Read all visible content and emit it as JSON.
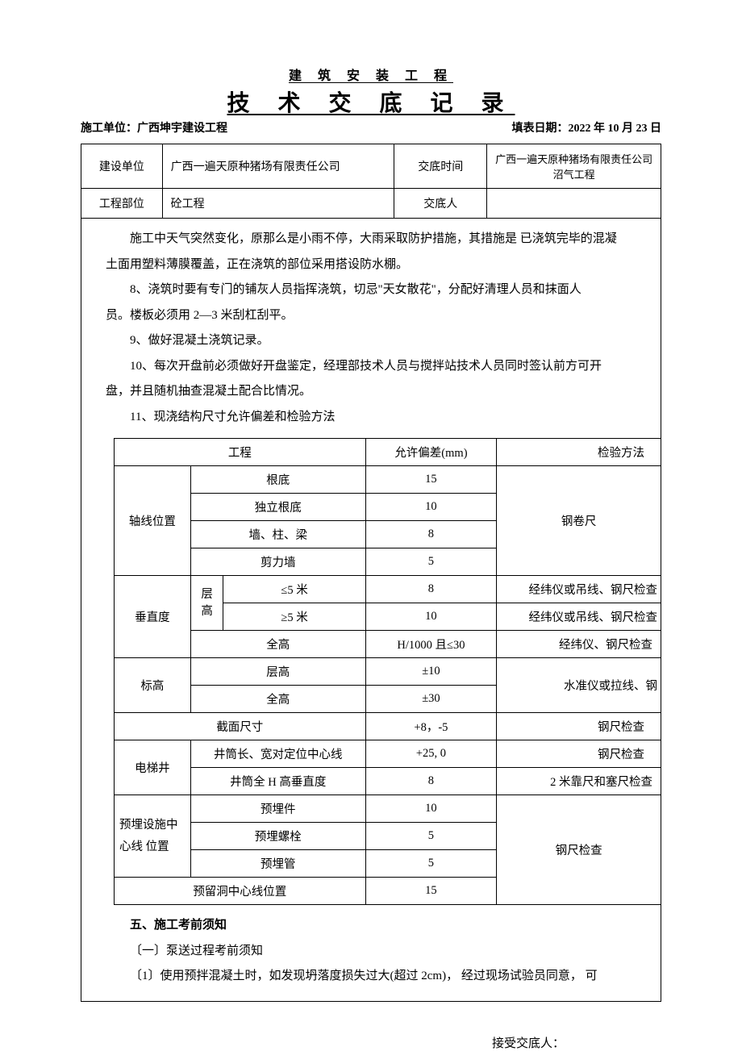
{
  "header": {
    "small_title": "建 筑 安 装 工 程",
    "big_title": "技 术 交 底 记 录",
    "unit_label": "施工单位：",
    "unit_value": "广西坤宇建设工程",
    "date_label": "填表日期：",
    "date_value": "2022 年 10 月 23 日"
  },
  "info": {
    "build_unit_label": "建设单位",
    "build_unit_value": "广西一遍天原种猪场有限责任公司",
    "time_label": "交底时间",
    "time_value": "广西一遍天原种猪场有限责任公司沼气工程",
    "part_label": "工程部位",
    "part_value": "砼工程",
    "person_label": "交底人",
    "person_value": ""
  },
  "body": {
    "p0a": "施工中天气突然变化，原那么是小雨不停，大雨采取防护措施，其措施是 已浇筑完毕的混凝",
    "p0b": "土面用塑料薄膜覆盖，正在浇筑的部位采用搭设防水棚。",
    "p8a": "8、浇筑时要有专门的铺灰人员指挥浇筑，切忌\"天女散花\"，分配好清理人员和抹面人",
    "p8b": "员。楼板必须用 2—3 米刮杠刮平。",
    "p9": "9、做好混凝土浇筑记录。",
    "p10a": "10、每次开盘前必须做好开盘鉴定，经理部技术人员与搅拌站技术人员同时签认前方可开",
    "p10b": "盘，并且随机抽查混凝土配合比情况。",
    "p11": "11、现浇结构尺寸允许偏差和检验方法"
  },
  "tolerance": {
    "head": {
      "c1": "工程",
      "c2": "允许偏差(mm)",
      "c3": "检验方法"
    },
    "axis": {
      "label": "轴线位置",
      "r1": {
        "name": "根底",
        "dev": "15"
      },
      "r2": {
        "name": "独立根底",
        "dev": "10"
      },
      "r3": {
        "name": "墙、柱、梁",
        "dev": "8"
      },
      "r4": {
        "name": "剪力墙",
        "dev": "5"
      },
      "method": "钢卷尺"
    },
    "vert": {
      "label": "垂直度",
      "floor_label": "层高",
      "r1": {
        "name": "≤5 米",
        "dev": "8",
        "method": "经纬仪或吊线、钢尺检查"
      },
      "r2": {
        "name": "≥5 米",
        "dev": "10",
        "method": "经纬仪或吊线、钢尺检查"
      },
      "r3": {
        "name": "全高",
        "dev": "H/1000 且≤30",
        "method": "经纬仪、钢尺检查"
      }
    },
    "elev": {
      "label": "标高",
      "r1": {
        "name": "层高",
        "dev": "±10"
      },
      "r2": {
        "name": "全高",
        "dev": "±30"
      },
      "method": "水准仪或拉线、钢"
    },
    "section": {
      "name": "截面尺寸",
      "dev": "+8，-5",
      "method": "钢尺检查"
    },
    "elev_shaft": {
      "label": "电梯井",
      "r1": {
        "name": "井筒长、宽对定位中心线",
        "dev": "+25, 0",
        "method": "钢尺检查"
      },
      "r2": {
        "name": "井筒全 H 高垂直度",
        "dev": "8",
        "method": "2 米靠尺和塞尺检查"
      }
    },
    "embed": {
      "label": "预埋设施中心线 位置",
      "r1": {
        "name": "预埋件",
        "dev": "10"
      },
      "r2": {
        "name": "预埋螺栓",
        "dev": "5"
      },
      "r3": {
        "name": "预埋管",
        "dev": "5"
      }
    },
    "opening": {
      "name": "预留洞中心线位置",
      "dev": "15",
      "method": "钢尺检查"
    }
  },
  "after": {
    "t5": "五、施工考前须知",
    "t5_1": "〔一〕泵送过程考前须知",
    "t5_1_1": "〔1〕使用预拌混凝土时，如发现坍落度损失过大(超过 2cm)， 经过现场试验员同意， 可"
  },
  "footer": {
    "label": "接受交底人："
  }
}
